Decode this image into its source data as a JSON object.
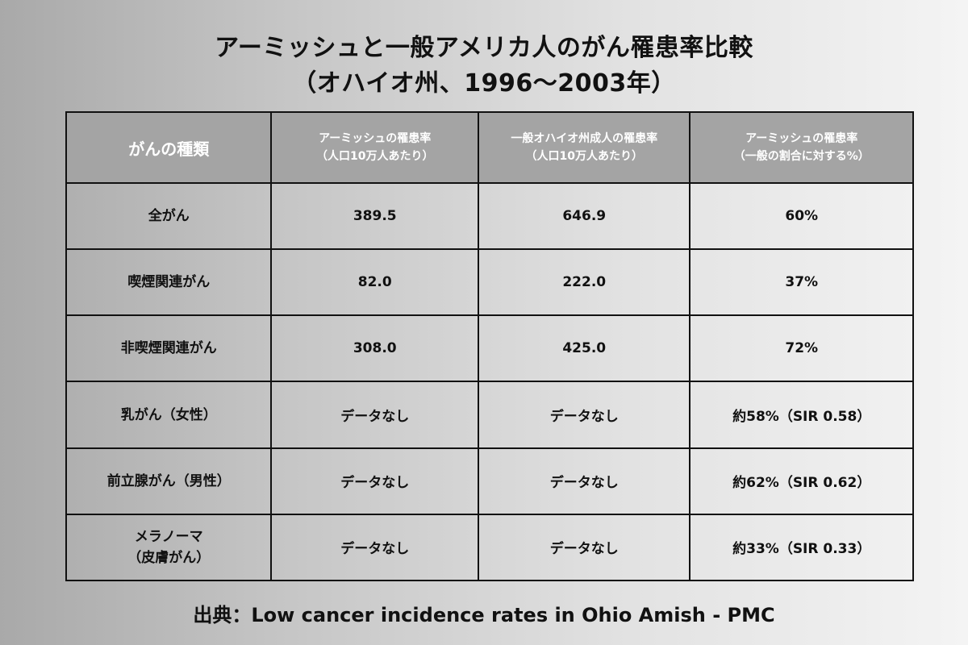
{
  "title": {
    "line1": "アーミッシュと一般アメリカ人のがん罹患率比較",
    "line2": "（オハイオ州、1996〜2003年）"
  },
  "table": {
    "headers": [
      {
        "line1": "がんの種類",
        "line2": ""
      },
      {
        "line1": "アーミッシュの罹患率",
        "line2": "（人口10万人あたり）"
      },
      {
        "line1": "一般オハイオ州成人の罹患率",
        "line2": "（人口10万人あたり）"
      },
      {
        "line1": "アーミッシュの罹患率",
        "line2": "（一般の割合に対する%）"
      }
    ],
    "rows": [
      {
        "type_line1": "全がん",
        "type_line2": "",
        "amish": "389.5",
        "general": "646.9",
        "ratio": "60%"
      },
      {
        "type_line1": "喫煙関連がん",
        "type_line2": "",
        "amish": "82.0",
        "general": "222.0",
        "ratio": "37%"
      },
      {
        "type_line1": "非喫煙関連がん",
        "type_line2": "",
        "amish": "308.0",
        "general": "425.0",
        "ratio": "72%"
      },
      {
        "type_line1": "乳がん（女性）",
        "type_line2": "",
        "amish": "データなし",
        "general": "データなし",
        "ratio": "約58%（SIR 0.58）"
      },
      {
        "type_line1": "前立腺がん（男性）",
        "type_line2": "",
        "amish": "データなし",
        "general": "データなし",
        "ratio": "約62%（SIR 0.62）"
      },
      {
        "type_line1": "メラノーマ",
        "type_line2": "（皮膚がん）",
        "amish": "データなし",
        "general": "データなし",
        "ratio": "約33%（SIR 0.33）"
      }
    ]
  },
  "source": "出典：Low cancer incidence rates in Ohio Amish - PMC"
}
